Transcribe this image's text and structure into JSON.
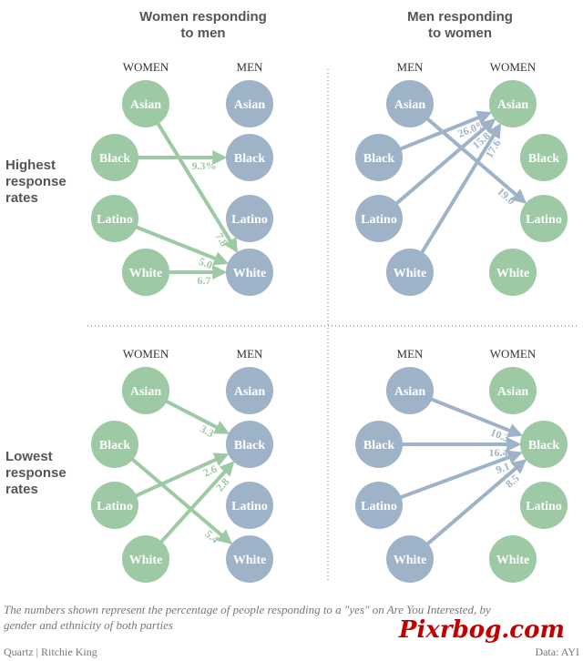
{
  "colors": {
    "women": "#9dc9a4",
    "men": "#9fb3c8",
    "green_arrow": "#9dc9a4",
    "blue_arrow": "#9fb3c8",
    "green_text": "#9dc9a4",
    "blue_text": "#9fb3c8"
  },
  "headers": {
    "left": [
      "Women responding",
      "to men"
    ],
    "right": [
      "Men responding",
      "to women"
    ]
  },
  "row_labels": {
    "top": [
      "Highest",
      "response",
      "rates"
    ],
    "bottom": [
      "Lowest",
      "response",
      "rates"
    ]
  },
  "column_labels": {
    "women": "WOMEN",
    "men": "MEN"
  },
  "ethnicities": [
    "Asian",
    "Black",
    "Latino",
    "White"
  ],
  "panels": [
    {
      "id": "top-left",
      "from_group": "women",
      "to_group": "men",
      "arrow_color": "green",
      "edges": [
        {
          "from": "Asian",
          "to": "White",
          "label": "7.8"
        },
        {
          "from": "Black",
          "to": "Black",
          "label": "9.3%"
        },
        {
          "from": "Latino",
          "to": "White",
          "label": "5.0"
        },
        {
          "from": "White",
          "to": "White",
          "label": "6.7"
        }
      ]
    },
    {
      "id": "top-right",
      "from_group": "men",
      "to_group": "women",
      "arrow_color": "blue",
      "edges": [
        {
          "from": "Asian",
          "to": "Latino",
          "label": "19.0"
        },
        {
          "from": "Black",
          "to": "Asian",
          "label": "26.0%"
        },
        {
          "from": "Latino",
          "to": "Asian",
          "label": "15.8"
        },
        {
          "from": "White",
          "to": "Asian",
          "label": "17.6"
        }
      ]
    },
    {
      "id": "bottom-left",
      "from_group": "women",
      "to_group": "men",
      "arrow_color": "green",
      "edges": [
        {
          "from": "Asian",
          "to": "Black",
          "label": "3.3"
        },
        {
          "from": "Black",
          "to": "White",
          "label": "5.4"
        },
        {
          "from": "Latino",
          "to": "Black",
          "label": "2.6"
        },
        {
          "from": "White",
          "to": "Black",
          "label": "2.8"
        }
      ]
    },
    {
      "id": "bottom-right",
      "from_group": "men",
      "to_group": "women",
      "arrow_color": "blue",
      "edges": [
        {
          "from": "Asian",
          "to": "Black",
          "label": "10.3"
        },
        {
          "from": "Black",
          "to": "Black",
          "label": "16.4"
        },
        {
          "from": "Latino",
          "to": "Black",
          "label": "9.1"
        },
        {
          "from": "White",
          "to": "Black",
          "label": "8.5"
        }
      ]
    }
  ],
  "footnote": [
    "The numbers shown represent the percentage of people responding to a \"yes\" on Are You Interested, by",
    "gender and ethnicity of both parties"
  ],
  "credit_left": "Quartz | Ritchie King",
  "credit_right": "Data: AYI",
  "watermark": "Pixrbog.com"
}
